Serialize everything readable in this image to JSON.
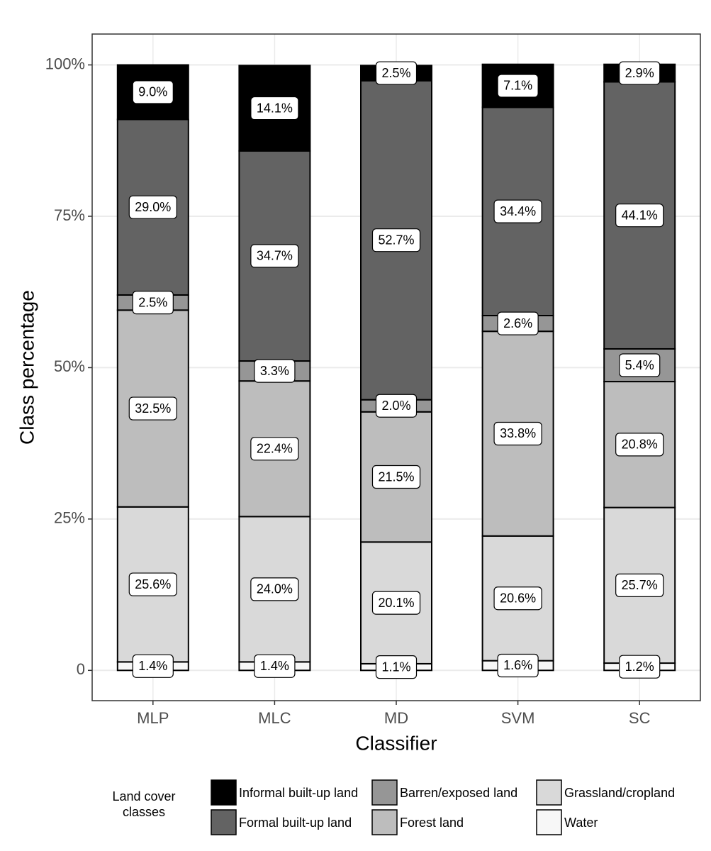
{
  "chart_data": {
    "type": "stacked_bar",
    "x_label": "Classifier",
    "y_label": "Class percentage",
    "categories": [
      "MLP",
      "MLC",
      "MD",
      "SVM",
      "SC"
    ],
    "legend_title": "Land cover classes",
    "series": [
      {
        "name": "Informal built-up land",
        "color": "#000000",
        "values": [
          9.0,
          14.1,
          2.5,
          7.1,
          2.9
        ],
        "value_labels": [
          "9.0%",
          "14.1%",
          "2.5%",
          "7.1%",
          "2.9%"
        ]
      },
      {
        "name": "Formal built-up land",
        "color": "#636363",
        "values": [
          29.0,
          34.7,
          52.7,
          34.4,
          44.1
        ],
        "value_labels": [
          "29.0%",
          "34.7%",
          "52.7%",
          "34.4%",
          "44.1%"
        ]
      },
      {
        "name": "Barren/exposed land",
        "color": "#969696",
        "values": [
          2.5,
          3.3,
          2.0,
          2.6,
          5.4
        ],
        "value_labels": [
          "2.5%",
          "3.3%",
          "2.0%",
          "2.6%",
          "5.4%"
        ]
      },
      {
        "name": "Forest land",
        "color": "#bdbdbd",
        "values": [
          32.5,
          22.4,
          21.5,
          33.8,
          20.8
        ],
        "value_labels": [
          "32.5%",
          "22.4%",
          "21.5%",
          "33.8%",
          "20.8%"
        ]
      },
      {
        "name": "Grassland/cropland",
        "color": "#d9d9d9",
        "values": [
          25.6,
          24.0,
          20.1,
          20.6,
          25.7
        ],
        "value_labels": [
          "25.6%",
          "24.0%",
          "20.1%",
          "20.6%",
          "25.7%"
        ]
      },
      {
        "name": "Water",
        "color": "#f7f7f7",
        "values": [
          1.4,
          1.4,
          1.1,
          1.6,
          1.2
        ],
        "value_labels": [
          "1.4%",
          "1.4%",
          "1.1%",
          "1.6%",
          "1.2%"
        ]
      }
    ],
    "ylim": [
      -5,
      105.1
    ],
    "yticks": [
      0,
      {
        "value": 25,
        "label": "25%"
      },
      {
        "value": 50,
        "label": "50%"
      },
      {
        "value": 75,
        "label": "75%"
      },
      {
        "value": 100,
        "label": "100%"
      }
    ],
    "grid": true
  }
}
